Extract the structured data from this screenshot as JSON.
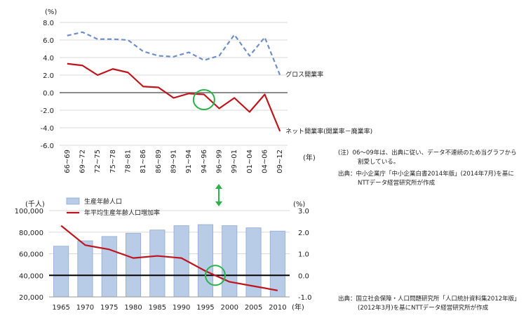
{
  "chart_data": [
    {
      "type": "line",
      "y_unit": "(%)",
      "x_unit": "(年)",
      "ylim": [
        -6.0,
        8.0
      ],
      "yticks": [
        "8.0",
        "6.0",
        "4.0",
        "2.0",
        "0.0",
        "-2.0",
        "-4.0",
        "-6.0"
      ],
      "ytick_values": [
        8,
        6,
        4,
        2,
        0,
        -2,
        -4,
        -6
      ],
      "categories": [
        "66~69",
        "69~72",
        "72~75",
        "75~78",
        "78~81",
        "81~86",
        "86~89",
        "89~91",
        "91~94",
        "94~96",
        "96~99",
        "99~01",
        "01~04",
        "04~06",
        "09~12"
      ],
      "series": [
        {
          "name": "グロス開業率",
          "style": "dashed",
          "color": "#6e8fc9",
          "values": [
            6.5,
            6.9,
            6.1,
            6.1,
            6.0,
            4.7,
            4.2,
            4.1,
            4.6,
            3.7,
            4.2,
            6.6,
            4.2,
            6.3,
            2.0
          ]
        },
        {
          "name": "ネット開業率(開業率－廃業率)",
          "style": "solid",
          "color": "#c0141c",
          "values": [
            3.3,
            3.1,
            2.0,
            2.7,
            2.3,
            0.7,
            0.6,
            -0.6,
            -0.1,
            -0.2,
            -1.8,
            -0.6,
            -2.2,
            -0.2,
            -4.4
          ]
        }
      ],
      "grid": true,
      "highlight_category": "94~96"
    },
    {
      "type": "bar+line",
      "y_left_unit": "(千人)",
      "y_right_unit": "(%)",
      "x_unit": "(年)",
      "ylim_left": [
        20000,
        100000
      ],
      "ylim_right": [
        -1.0,
        3.0
      ],
      "yticks_left": [
        "100,000",
        "80,000",
        "60,000",
        "40,000",
        "20,000"
      ],
      "ytick_values_left": [
        100000,
        80000,
        60000,
        40000,
        20000
      ],
      "yticks_right": [
        "3.0",
        "2.0",
        "1.0",
        "0.0",
        "-1.0"
      ],
      "ytick_values_right": [
        3,
        2,
        1,
        0,
        -1
      ],
      "categories": [
        "1965",
        "1970",
        "1975",
        "1980",
        "1985",
        "1990",
        "1995",
        "2000",
        "2005",
        "2010"
      ],
      "series": [
        {
          "name": "生産年齢人口",
          "type": "bar",
          "color": "#b8cce8",
          "axis": "left",
          "values": [
            67000,
            72000,
            76000,
            79000,
            82000,
            86000,
            87000,
            86000,
            84000,
            81000
          ]
        },
        {
          "name": "年平均生産年齢人口増加率",
          "type": "line",
          "color": "#c0141c",
          "axis": "right",
          "values": [
            2.3,
            1.4,
            1.2,
            0.8,
            0.9,
            0.8,
            0.2,
            -0.3,
            -0.5,
            -0.7
          ]
        }
      ],
      "grid": true,
      "highlight_category": "1995"
    }
  ],
  "notes": {
    "top_note_label": "(注)",
    "top_note_line1": "06～09年は、出典に従い、データ不連続のため当グラフから",
    "top_note_line2": "割愛している。",
    "top_source_label": "出典：",
    "top_source_line1": "中小企業庁「中小企業白書2014年版」(2014年7月)を基に",
    "top_source_line2": "NTTデータ経営研究所が作成",
    "bottom_source_label": "出典：",
    "bottom_source_line1": "国立社会保障・人口問題研究所「人口統計資料集2012年版」",
    "bottom_source_line2": "(2012年3月)を基にNTTデータ経営研究所が作成"
  },
  "colors": {
    "highlight_circle": "#2bb34a",
    "connector_arrow": "#2bb34a",
    "gridline": "#d9d9d9",
    "zero_line_top": "#8c8c8c",
    "zero_line_bottom": "#000000"
  }
}
